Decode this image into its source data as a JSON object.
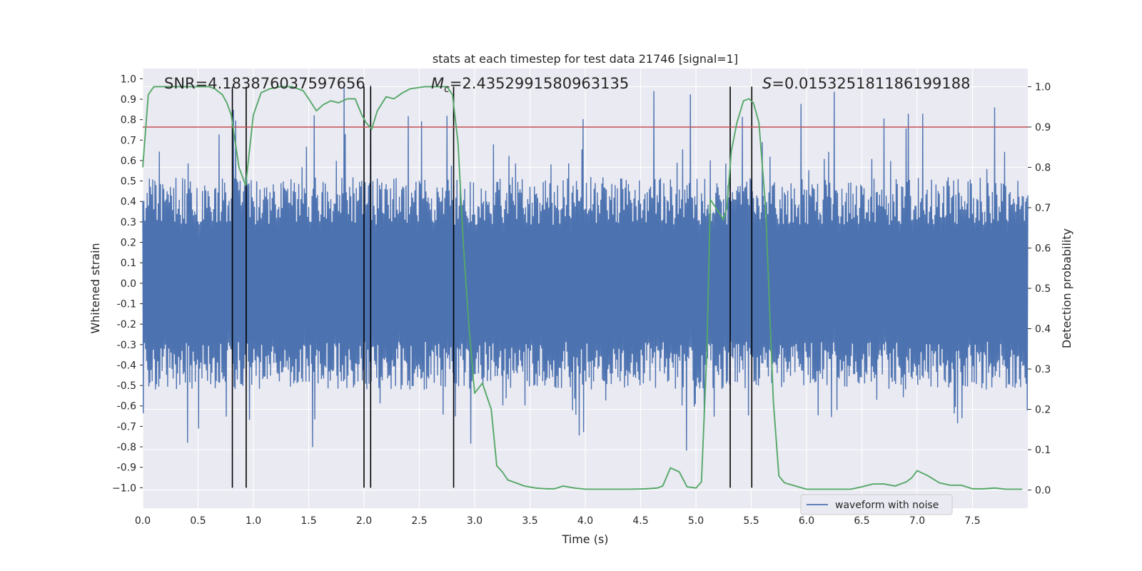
{
  "chart_data": {
    "type": "line",
    "title": "stats at each timestep for test data 21746 [signal=1]",
    "xlabel": "Time (s)",
    "ylabel": "Whitened strain",
    "y2label": "Detection probability",
    "xlim": [
      0.0,
      8.0
    ],
    "ylim": [
      -1.1,
      1.05
    ],
    "y2lim": [
      -0.045,
      1.045
    ],
    "xticks": [
      "0.0",
      "0.5",
      "1.0",
      "1.5",
      "2.0",
      "2.5",
      "3.0",
      "3.5",
      "4.0",
      "4.5",
      "5.0",
      "5.5",
      "6.0",
      "6.5",
      "7.0",
      "7.5"
    ],
    "yticks": [
      "1.0",
      "0.9",
      "0.8",
      "0.7",
      "0.6",
      "0.5",
      "0.4",
      "0.3",
      "0.2",
      "0.1",
      "0.0",
      "-0.1",
      "-0.2",
      "-0.3",
      "-0.4",
      "-0.5",
      "-0.6",
      "-0.7",
      "-0.8",
      "-0.9",
      "−1.0"
    ],
    "y2ticks": [
      "1.0",
      "0.9",
      "0.8",
      "0.7",
      "0.6",
      "0.5",
      "0.4",
      "0.3",
      "0.2",
      "0.1",
      "0.0"
    ],
    "annotations": {
      "snr": "SNR=4.183876037597656",
      "mc": "=2.4352991580963135",
      "mc_symbol": "M",
      "mc_sub": "c",
      "s": "=0.015325181186199188",
      "s_symbol": "S"
    },
    "threshold": 0.9,
    "threshold_color": "#c44e52",
    "vertical_lines_x": [
      0.81,
      0.935,
      2.0,
      2.06,
      2.81,
      5.31,
      5.505
    ],
    "vertical_line_ymin": -1.0,
    "legend": {
      "label": "waveform with noise",
      "location": "lower right"
    },
    "series": [
      {
        "name": "waveform with noise",
        "axis": "left",
        "color": "#4c72b0",
        "style": "noise",
        "band": 0.52,
        "max_excursion": 0.97,
        "spike_times": [
          0.82,
          0.84,
          1.55,
          1.82,
          2.06,
          2.4,
          2.75,
          3.98,
          4.62,
          4.95,
          5.42,
          5.95,
          6.25,
          6.7,
          6.92,
          7.05,
          7.7
        ]
      },
      {
        "name": "Detection probability",
        "axis": "right",
        "color": "#55a868",
        "style": "line",
        "x": [
          0.0,
          0.05,
          0.1,
          0.2,
          0.3,
          0.4,
          0.5,
          0.6,
          0.65,
          0.72,
          0.76,
          0.8,
          0.87,
          0.93,
          1.0,
          1.07,
          1.15,
          1.25,
          1.35,
          1.45,
          1.5,
          1.57,
          1.63,
          1.7,
          1.77,
          1.85,
          1.92,
          1.98,
          2.02,
          2.07,
          2.12,
          2.2,
          2.27,
          2.35,
          2.42,
          2.55,
          2.65,
          2.75,
          2.8,
          2.85,
          2.9,
          2.95,
          3.0,
          3.07,
          3.15,
          3.2,
          3.25,
          3.3,
          3.35,
          3.45,
          3.55,
          3.65,
          3.72,
          3.8,
          3.9,
          4.0,
          4.1,
          4.2,
          4.4,
          4.55,
          4.65,
          4.7,
          4.77,
          4.85,
          4.92,
          5.0,
          5.05,
          5.1,
          5.13,
          5.18,
          5.25,
          5.28,
          5.32,
          5.37,
          5.43,
          5.48,
          5.52,
          5.57,
          5.63,
          5.7,
          5.75,
          5.8,
          5.9,
          6.0,
          6.2,
          6.4,
          6.5,
          6.6,
          6.7,
          6.8,
          6.9,
          6.95,
          7.0,
          7.1,
          7.2,
          7.3,
          7.4,
          7.5,
          7.6,
          7.7,
          7.8,
          7.95
        ],
        "y": [
          0.8,
          0.98,
          1.0,
          1.0,
          1.0,
          1.0,
          1.0,
          1.0,
          0.995,
          0.98,
          0.96,
          0.93,
          0.8,
          0.755,
          0.93,
          0.985,
          0.995,
          1.0,
          1.0,
          0.99,
          0.97,
          0.94,
          0.955,
          0.965,
          0.96,
          0.97,
          0.97,
          0.93,
          0.91,
          0.895,
          0.94,
          0.975,
          0.97,
          0.985,
          0.995,
          1.0,
          1.0,
          1.0,
          0.98,
          0.86,
          0.6,
          0.4,
          0.24,
          0.265,
          0.2,
          0.06,
          0.045,
          0.025,
          0.02,
          0.01,
          0.005,
          0.003,
          0.003,
          0.01,
          0.005,
          0.002,
          0.002,
          0.002,
          0.002,
          0.003,
          0.005,
          0.01,
          0.055,
          0.045,
          0.008,
          0.005,
          0.02,
          0.35,
          0.72,
          0.7,
          0.67,
          0.7,
          0.84,
          0.91,
          0.965,
          0.97,
          0.96,
          0.91,
          0.7,
          0.22,
          0.035,
          0.018,
          0.01,
          0.002,
          0.002,
          0.002,
          0.008,
          0.015,
          0.015,
          0.01,
          0.02,
          0.03,
          0.048,
          0.035,
          0.018,
          0.012,
          0.012,
          0.003,
          0.003,
          0.005,
          0.002,
          0.002
        ]
      }
    ]
  }
}
